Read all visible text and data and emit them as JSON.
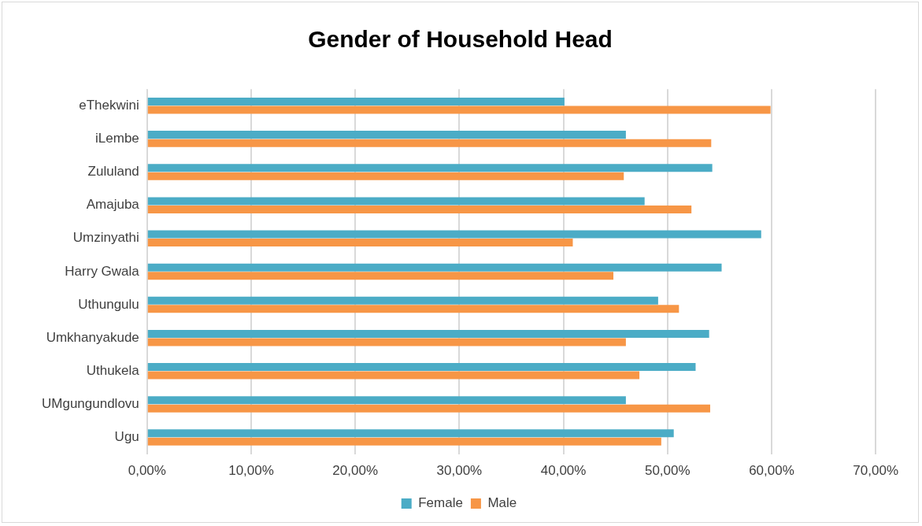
{
  "chart_data": {
    "type": "bar",
    "orientation": "horizontal",
    "title": "Gender of Household Head",
    "categories": [
      "eThekwini",
      "iLembe",
      "Zululand",
      "Amajuba",
      "Umzinyathi",
      "Harry Gwala",
      "Uthungulu",
      "Umkhanyakude",
      "Uthukela",
      "UMgungundlovu",
      "Ugu"
    ],
    "series": [
      {
        "name": "Female",
        "color": "#4bacc6",
        "values": [
          40.1,
          46.0,
          54.3,
          47.8,
          59.0,
          55.2,
          49.1,
          54.0,
          52.7,
          46.0,
          50.6
        ]
      },
      {
        "name": "Male",
        "color": "#f79646",
        "values": [
          59.9,
          54.2,
          45.8,
          52.3,
          40.9,
          44.8,
          51.1,
          46.0,
          47.3,
          54.1,
          49.4
        ]
      }
    ],
    "xlim": [
      0,
      70
    ],
    "xticks": [
      {
        "value": 0,
        "label": "0,00%"
      },
      {
        "value": 10,
        "label": "10,00%"
      },
      {
        "value": 20,
        "label": "20,00%"
      },
      {
        "value": 30,
        "label": "30,00%"
      },
      {
        "value": 40,
        "label": "40,00%"
      },
      {
        "value": 50,
        "label": "50,00%"
      },
      {
        "value": 60,
        "label": "60,00%"
      },
      {
        "value": 70,
        "label": "70,00%"
      }
    ],
    "grid": "x",
    "legend": "bottom"
  }
}
